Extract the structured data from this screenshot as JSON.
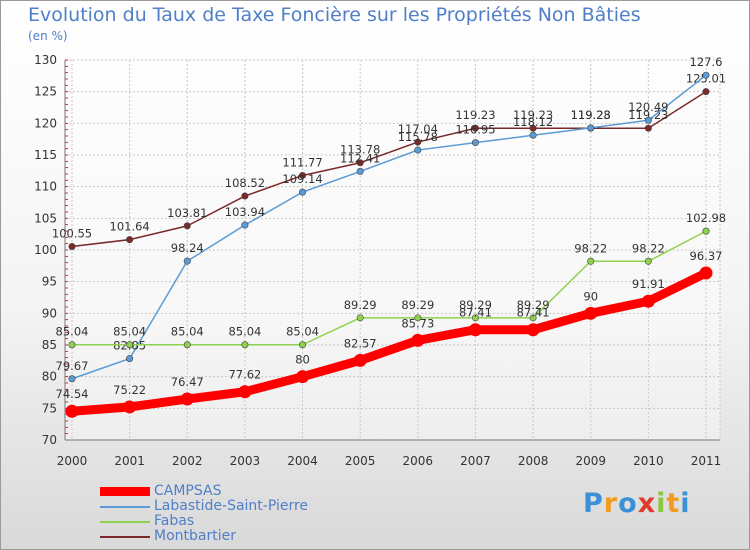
{
  "title": "Evolution du Taux de Taxe Foncière sur les Propriétés Non Bâties",
  "unit": "(en %)",
  "logo": "Proxiti",
  "chart_data": {
    "type": "line",
    "categories": [
      "2000",
      "2001",
      "2002",
      "2003",
      "2004",
      "2005",
      "2006",
      "2007",
      "2008",
      "2009",
      "2010",
      "2011"
    ],
    "ylim": [
      70,
      130
    ],
    "yticks": [
      70,
      75,
      80,
      85,
      90,
      95,
      100,
      105,
      110,
      115,
      120,
      125,
      130
    ],
    "grid": true,
    "legend_position": "bottom-left",
    "series": [
      {
        "name": "CAMPSAS",
        "color": "#ff0000",
        "values": [
          74.54,
          75.22,
          76.47,
          77.62,
          80,
          82.57,
          85.73,
          87.41,
          87.41,
          90,
          91.91,
          96.37
        ],
        "labels": [
          "74.54",
          "75.22",
          "76.47",
          "77.62",
          "80",
          "82.57",
          "85.73",
          "87.41",
          "87.41",
          "90",
          "91.91",
          "96.37"
        ]
      },
      {
        "name": "Labastide-Saint-Pierre",
        "color": "#5b9bd5",
        "values": [
          79.67,
          82.85,
          98.24,
          103.94,
          109.14,
          112.41,
          115.78,
          116.95,
          118.12,
          119.28,
          120.49,
          127.6
        ],
        "labels": [
          "79.67",
          "82.85",
          "98.24",
          "103.94",
          "109.14",
          "112.41",
          "115.78",
          "116.95",
          "118.12",
          "119.28",
          "120.49",
          "127.6"
        ]
      },
      {
        "name": "Fabas",
        "color": "#8fd14f",
        "values": [
          85.04,
          85.04,
          85.04,
          85.04,
          85.04,
          89.29,
          89.29,
          89.29,
          89.29,
          98.22,
          98.22,
          102.98
        ],
        "labels": [
          "85.04",
          "85.04",
          "85.04",
          "85.04",
          "85.04",
          "89.29",
          "89.29",
          "89.29",
          "89.29",
          "98.22",
          "98.22",
          "102.98"
        ]
      },
      {
        "name": "Montbartier",
        "color": "#7a2a2a",
        "values": [
          100.55,
          101.64,
          103.81,
          108.52,
          111.77,
          113.78,
          117.04,
          119.23,
          119.23,
          119.23,
          119.23,
          125.01
        ],
        "labels": [
          "100.55",
          "101.64",
          "103.81",
          "108.52",
          "111.77",
          "113.78",
          "117.04",
          "119.23",
          "119.23",
          "119.23",
          "119.23",
          "125.01"
        ]
      }
    ]
  }
}
